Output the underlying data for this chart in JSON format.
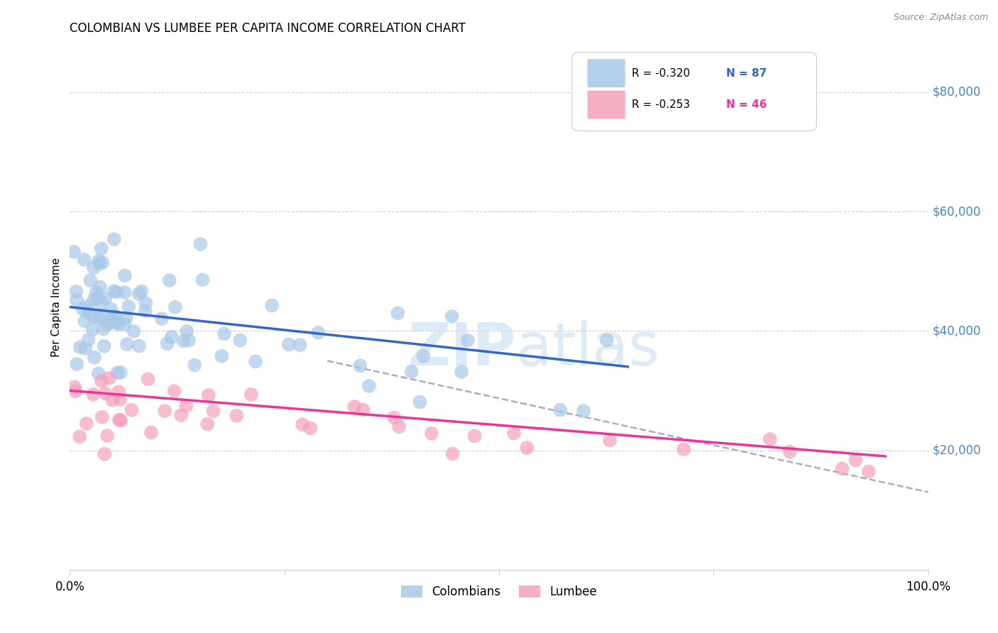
{
  "title": "COLOMBIAN VS LUMBEE PER CAPITA INCOME CORRELATION CHART",
  "source": "Source: ZipAtlas.com",
  "ylabel": "Per Capita Income",
  "ytick_labels": [
    "$20,000",
    "$40,000",
    "$60,000",
    "$80,000"
  ],
  "ytick_values": [
    20000,
    40000,
    60000,
    80000
  ],
  "ymin": 0,
  "ymax": 88000,
  "xmin": 0.0,
  "xmax": 1.0,
  "legend_r1": "R = -0.320",
  "legend_n1": "N = 87",
  "legend_r2": "R = -0.253",
  "legend_n2": "N = 46",
  "colombian_color": "#a8c8e8",
  "lumbee_color": "#f4a0b8",
  "trendline_colombian_color": "#3366cc",
  "trendline_lumbee_color": "#ee3399",
  "trendline_dashed_color": "#aaaacc",
  "watermark_zip": "ZIP",
  "watermark_atlas": "atlas",
  "col_trendline": [
    [
      0.0,
      44000
    ],
    [
      0.65,
      34000
    ]
  ],
  "lum_trendline": [
    [
      0.0,
      30000
    ],
    [
      0.95,
      19000
    ]
  ],
  "dash_trendline": [
    [
      0.3,
      35000
    ],
    [
      1.0,
      13000
    ]
  ]
}
